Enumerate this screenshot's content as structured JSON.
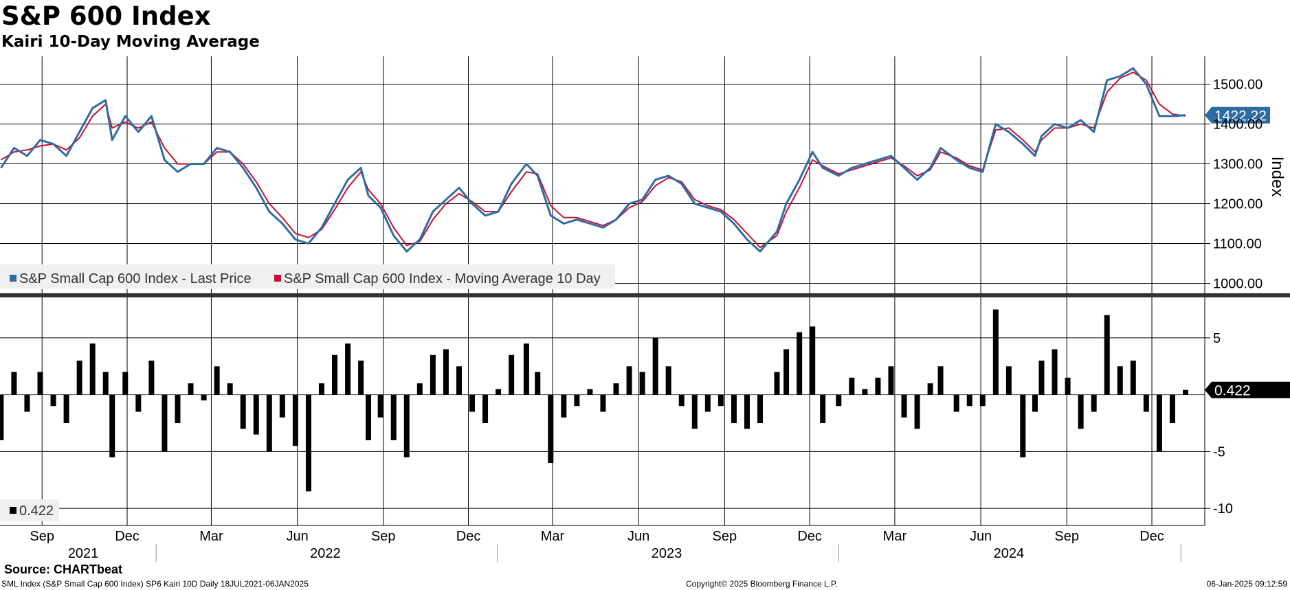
{
  "title": "S&P 600 Index",
  "subtitle": "Kairi 10-Day Moving Average",
  "source": "Source: CHARTbeat",
  "footer": {
    "left": "SML Index (S&P Small Cap 600 Index) SP6 Kairi 10D  Daily 18JUL2021-06JAN2025",
    "center": "Copyright© 2025 Bloomberg Finance L.P.",
    "right": "06-Jan-2025 09:12:59"
  },
  "colors": {
    "price": "#2e6da4",
    "ma": "#c8102e",
    "kairi": "#000000",
    "grid": "#000000"
  },
  "chart_data": [
    {
      "type": "line",
      "ylabel": "Index",
      "ylim": [
        975,
        1570
      ],
      "yticks": [
        "1000.00",
        "1100.00",
        "1200.00",
        "1300.00",
        "1400.00",
        "1500.00"
      ],
      "x_months": [
        "Sep",
        "Dec",
        "Mar",
        "Jun",
        "Sep",
        "Dec",
        "Mar",
        "Jun",
        "Sep",
        "Dec",
        "Mar",
        "Jun",
        "Sep",
        "Dec"
      ],
      "x_years": [
        "2021",
        "2022",
        "2023",
        "2024"
      ],
      "x_range": [
        "2021-07-18",
        "2025-01-06"
      ],
      "last_value_label": "1422.22",
      "legend_position": "bottom-left",
      "series": [
        {
          "name": "S&P Small Cap 600 Index - Last Price",
          "dates": [
            "2021-07-19",
            "2021-08-02",
            "2021-08-16",
            "2021-08-30",
            "2021-09-13",
            "2021-09-27",
            "2021-10-11",
            "2021-10-25",
            "2021-11-08",
            "2021-11-15",
            "2021-11-29",
            "2021-12-13",
            "2021-12-27",
            "2022-01-10",
            "2022-01-24",
            "2022-02-07",
            "2022-02-21",
            "2022-03-07",
            "2022-03-21",
            "2022-04-04",
            "2022-04-18",
            "2022-05-02",
            "2022-05-16",
            "2022-05-30",
            "2022-06-13",
            "2022-06-27",
            "2022-07-11",
            "2022-07-25",
            "2022-08-08",
            "2022-08-16",
            "2022-08-29",
            "2022-09-12",
            "2022-09-26",
            "2022-10-10",
            "2022-10-24",
            "2022-11-07",
            "2022-11-21",
            "2022-12-05",
            "2022-12-19",
            "2023-01-02",
            "2023-01-16",
            "2023-02-01",
            "2023-02-13",
            "2023-02-27",
            "2023-03-13",
            "2023-03-27",
            "2023-04-10",
            "2023-04-24",
            "2023-05-08",
            "2023-05-22",
            "2023-06-05",
            "2023-06-19",
            "2023-07-03",
            "2023-07-17",
            "2023-07-31",
            "2023-08-14",
            "2023-08-28",
            "2023-09-11",
            "2023-09-25",
            "2023-10-09",
            "2023-10-27",
            "2023-11-06",
            "2023-11-20",
            "2023-12-04",
            "2023-12-15",
            "2024-01-01",
            "2024-01-15",
            "2024-01-29",
            "2024-02-12",
            "2024-02-26",
            "2024-03-11",
            "2024-03-25",
            "2024-04-08",
            "2024-04-19",
            "2024-05-06",
            "2024-05-20",
            "2024-06-03",
            "2024-06-17",
            "2024-07-01",
            "2024-07-16",
            "2024-07-29",
            "2024-08-05",
            "2024-08-19",
            "2024-09-02",
            "2024-09-16",
            "2024-09-30",
            "2024-10-14",
            "2024-10-28",
            "2024-11-11",
            "2024-11-25",
            "2024-12-09",
            "2024-12-23",
            "2025-01-06"
          ],
          "values": [
            1290,
            1340,
            1320,
            1360,
            1350,
            1320,
            1380,
            1440,
            1460,
            1360,
            1420,
            1380,
            1420,
            1310,
            1280,
            1300,
            1300,
            1340,
            1330,
            1290,
            1240,
            1180,
            1150,
            1110,
            1100,
            1140,
            1200,
            1260,
            1290,
            1220,
            1190,
            1120,
            1080,
            1110,
            1180,
            1210,
            1240,
            1200,
            1170,
            1180,
            1250,
            1300,
            1270,
            1170,
            1150,
            1160,
            1150,
            1140,
            1160,
            1200,
            1210,
            1260,
            1270,
            1250,
            1200,
            1190,
            1180,
            1150,
            1110,
            1080,
            1130,
            1200,
            1260,
            1330,
            1290,
            1270,
            1290,
            1300,
            1310,
            1320,
            1290,
            1260,
            1290,
            1340,
            1310,
            1290,
            1280,
            1400,
            1380,
            1350,
            1320,
            1370,
            1400,
            1390,
            1410,
            1380,
            1510,
            1520,
            1540,
            1500,
            1420,
            1420,
            1422.22
          ]
        },
        {
          "name": "S&P Small Cap 600 Index - Moving Average 10 Day",
          "dates": [
            "2021-07-19",
            "2021-08-02",
            "2021-08-16",
            "2021-08-30",
            "2021-09-13",
            "2021-09-27",
            "2021-10-11",
            "2021-10-25",
            "2021-11-08",
            "2021-11-15",
            "2021-11-29",
            "2021-12-13",
            "2021-12-27",
            "2022-01-10",
            "2022-01-24",
            "2022-02-07",
            "2022-02-21",
            "2022-03-07",
            "2022-03-21",
            "2022-04-04",
            "2022-04-18",
            "2022-05-02",
            "2022-05-16",
            "2022-05-30",
            "2022-06-13",
            "2022-06-27",
            "2022-07-11",
            "2022-07-25",
            "2022-08-08",
            "2022-08-16",
            "2022-08-29",
            "2022-09-12",
            "2022-09-26",
            "2022-10-10",
            "2022-10-24",
            "2022-11-07",
            "2022-11-21",
            "2022-12-05",
            "2022-12-19",
            "2023-01-02",
            "2023-01-16",
            "2023-02-01",
            "2023-02-13",
            "2023-02-27",
            "2023-03-13",
            "2023-03-27",
            "2023-04-10",
            "2023-04-24",
            "2023-05-08",
            "2023-05-22",
            "2023-06-05",
            "2023-06-19",
            "2023-07-03",
            "2023-07-17",
            "2023-07-31",
            "2023-08-14",
            "2023-08-28",
            "2023-09-11",
            "2023-09-25",
            "2023-10-09",
            "2023-10-27",
            "2023-11-06",
            "2023-11-20",
            "2023-12-04",
            "2023-12-15",
            "2024-01-01",
            "2024-01-15",
            "2024-01-29",
            "2024-02-12",
            "2024-02-26",
            "2024-03-11",
            "2024-03-25",
            "2024-04-08",
            "2024-04-19",
            "2024-05-06",
            "2024-05-20",
            "2024-06-03",
            "2024-06-17",
            "2024-07-01",
            "2024-07-16",
            "2024-07-29",
            "2024-08-05",
            "2024-08-19",
            "2024-09-02",
            "2024-09-16",
            "2024-09-30",
            "2024-10-14",
            "2024-10-28",
            "2024-11-11",
            "2024-11-25",
            "2024-12-09",
            "2024-12-23",
            "2025-01-06"
          ],
          "values": [
            1310,
            1330,
            1335,
            1345,
            1350,
            1335,
            1365,
            1420,
            1450,
            1390,
            1405,
            1390,
            1405,
            1340,
            1300,
            1300,
            1300,
            1330,
            1330,
            1300,
            1255,
            1200,
            1165,
            1125,
            1115,
            1135,
            1185,
            1240,
            1280,
            1235,
            1200,
            1140,
            1095,
            1105,
            1160,
            1200,
            1225,
            1205,
            1180,
            1180,
            1230,
            1280,
            1275,
            1195,
            1165,
            1165,
            1155,
            1145,
            1160,
            1190,
            1205,
            1245,
            1265,
            1255,
            1210,
            1195,
            1185,
            1160,
            1125,
            1090,
            1120,
            1180,
            1240,
            1310,
            1295,
            1275,
            1285,
            1295,
            1305,
            1315,
            1295,
            1270,
            1285,
            1330,
            1315,
            1295,
            1285,
            1385,
            1390,
            1360,
            1330,
            1360,
            1390,
            1390,
            1400,
            1390,
            1480,
            1515,
            1530,
            1510,
            1450,
            1425,
            1420
          ]
        }
      ]
    },
    {
      "type": "bar",
      "name": "Kairi 10D",
      "ylim": [
        -11.5,
        8.5
      ],
      "yticks": [
        "5",
        "-5",
        "-10"
      ],
      "last_value_label": "0.422",
      "legend": "0.422",
      "dates": [
        "2021-07-19",
        "2021-08-02",
        "2021-08-16",
        "2021-08-30",
        "2021-09-13",
        "2021-09-27",
        "2021-10-11",
        "2021-10-25",
        "2021-11-08",
        "2021-11-15",
        "2021-11-29",
        "2021-12-13",
        "2021-12-27",
        "2022-01-10",
        "2022-01-24",
        "2022-02-07",
        "2022-02-21",
        "2022-03-07",
        "2022-03-21",
        "2022-04-04",
        "2022-04-18",
        "2022-05-02",
        "2022-05-16",
        "2022-05-30",
        "2022-06-13",
        "2022-06-27",
        "2022-07-11",
        "2022-07-25",
        "2022-08-08",
        "2022-08-16",
        "2022-08-29",
        "2022-09-12",
        "2022-09-26",
        "2022-10-10",
        "2022-10-24",
        "2022-11-07",
        "2022-11-21",
        "2022-12-05",
        "2022-12-19",
        "2023-01-02",
        "2023-01-16",
        "2023-02-01",
        "2023-02-13",
        "2023-02-27",
        "2023-03-13",
        "2023-03-27",
        "2023-04-10",
        "2023-04-24",
        "2023-05-08",
        "2023-05-22",
        "2023-06-05",
        "2023-06-19",
        "2023-07-03",
        "2023-07-17",
        "2023-07-31",
        "2023-08-14",
        "2023-08-28",
        "2023-09-11",
        "2023-09-25",
        "2023-10-09",
        "2023-10-27",
        "2023-11-06",
        "2023-11-20",
        "2023-12-04",
        "2023-12-15",
        "2024-01-01",
        "2024-01-15",
        "2024-01-29",
        "2024-02-12",
        "2024-02-26",
        "2024-03-11",
        "2024-03-25",
        "2024-04-08",
        "2024-04-19",
        "2024-05-06",
        "2024-05-20",
        "2024-06-03",
        "2024-06-17",
        "2024-07-01",
        "2024-07-16",
        "2024-07-29",
        "2024-08-05",
        "2024-08-19",
        "2024-09-02",
        "2024-09-16",
        "2024-09-30",
        "2024-10-14",
        "2024-10-28",
        "2024-11-11",
        "2024-11-25",
        "2024-12-09",
        "2024-12-23",
        "2025-01-06"
      ],
      "values": [
        -4,
        2,
        -1.5,
        2,
        -1,
        -2.5,
        3,
        4.5,
        2,
        -5.5,
        2,
        -1.5,
        3,
        -5,
        -2.5,
        1,
        -0.5,
        2.5,
        1,
        -3,
        -3.5,
        -5,
        -2,
        -4.5,
        -8.5,
        1,
        3.5,
        4.5,
        3,
        -4,
        -2,
        -4,
        -5.5,
        1,
        3.5,
        4,
        2.5,
        -1.5,
        -2.5,
        0.5,
        3.5,
        4.5,
        2,
        -6,
        -2,
        -1,
        0.5,
        -1.5,
        1,
        2.5,
        2,
        5,
        2.5,
        -1,
        -3,
        -1.5,
        -1,
        -2.5,
        -3,
        -2.5,
        2,
        4,
        5.5,
        6,
        -2.5,
        -1,
        1.5,
        0.5,
        1.5,
        2.5,
        -2,
        -3,
        1,
        2.5,
        -1.5,
        -1,
        -1,
        7.5,
        2.5,
        -5.5,
        -1.5,
        3,
        4,
        1.5,
        -3,
        -1.5,
        7,
        2.5,
        3,
        -1.5,
        -5,
        -2.5,
        0.422
      ]
    }
  ]
}
